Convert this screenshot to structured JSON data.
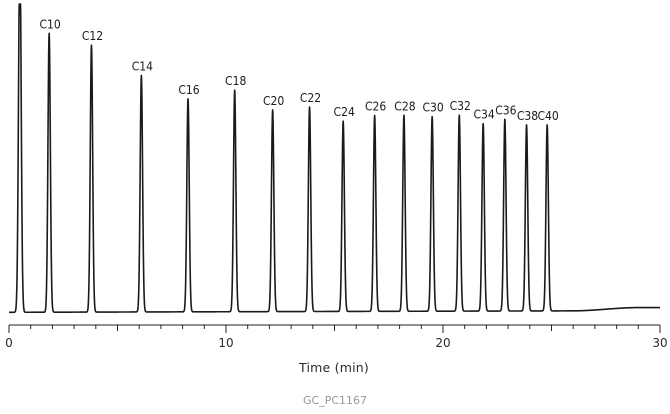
{
  "chart_data": {
    "type": "line",
    "title": "",
    "xlabel": "Time (min)",
    "ylabel": "",
    "xlim": [
      0,
      30
    ],
    "x_ticks": [
      0,
      10,
      20,
      30
    ],
    "grid": false,
    "legend": "none",
    "line_color": "#1a1a1a",
    "baseline": {
      "start": 0.05,
      "end": 0.19,
      "rise_start_time": 26.0,
      "plateau_time": 29.0
    },
    "solvent_peak": {
      "time": 0.5,
      "height": 1.3
    },
    "peaks": [
      {
        "label": "C10",
        "time": 1.85,
        "height": 0.982
      },
      {
        "label": "C12",
        "time": 3.8,
        "height": 0.94
      },
      {
        "label": "C14",
        "time": 6.1,
        "height": 0.833
      },
      {
        "label": "C16",
        "time": 8.25,
        "height": 0.75
      },
      {
        "label": "C18",
        "time": 10.4,
        "height": 0.78
      },
      {
        "label": "C20",
        "time": 12.15,
        "height": 0.71
      },
      {
        "label": "C22",
        "time": 13.85,
        "height": 0.72
      },
      {
        "label": "C24",
        "time": 15.4,
        "height": 0.67
      },
      {
        "label": "C26",
        "time": 16.85,
        "height": 0.69
      },
      {
        "label": "C28",
        "time": 18.2,
        "height": 0.69
      },
      {
        "label": "C30",
        "time": 19.5,
        "height": 0.685
      },
      {
        "label": "C32",
        "time": 20.75,
        "height": 0.69
      },
      {
        "label": "C34",
        "time": 21.85,
        "height": 0.66
      },
      {
        "label": "C36",
        "time": 22.85,
        "height": 0.675
      },
      {
        "label": "C38",
        "time": 23.85,
        "height": 0.655
      },
      {
        "label": "C40",
        "time": 24.8,
        "height": 0.655
      }
    ]
  },
  "caption": "GC_PC1167"
}
